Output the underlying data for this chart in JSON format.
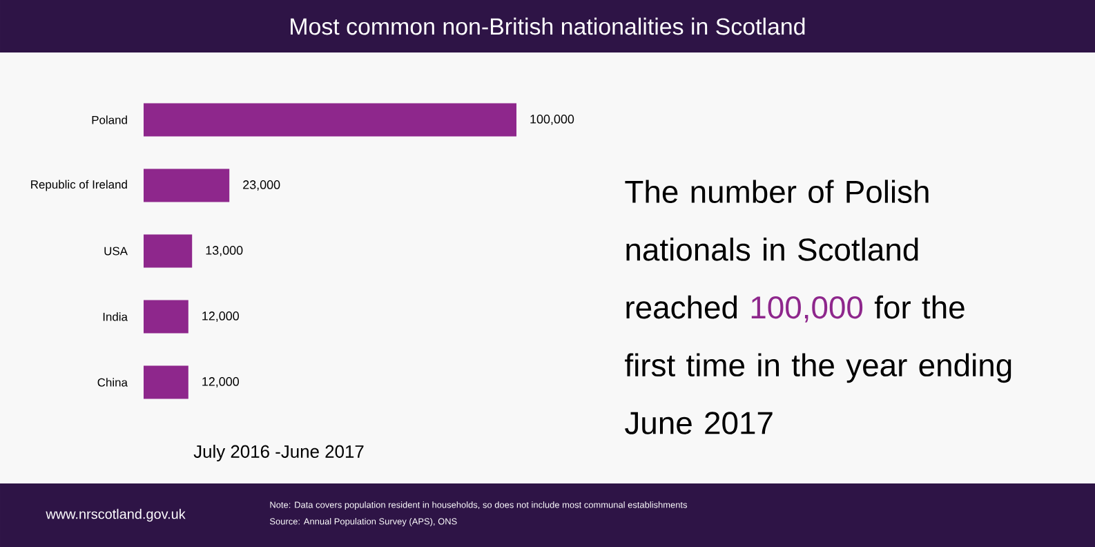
{
  "chart_data": {
    "type": "bar",
    "orientation": "horizontal",
    "title": "Most common non-British nationalities in Scotland",
    "categories": [
      "Poland",
      "Republic of Ireland",
      "USA",
      "India",
      "China"
    ],
    "values": [
      100000,
      23000,
      13000,
      12000,
      12000
    ],
    "value_labels": [
      "100,000",
      "23,000",
      "13,000",
      "12,000",
      "12,000"
    ],
    "color": "#8e278c",
    "xlabel": "July 2016 -June 2017",
    "annotations": [
      "The number of Polish nationals in Scotland reached",
      "100,000",
      "for the first time in the year ending June 2017",
      "Note: Data covers population resident in households, so does not include most communal establishments",
      "Source: Annual Population Survey (APS), ONS",
      "www.nrscotland.gov.uk"
    ]
  }
}
